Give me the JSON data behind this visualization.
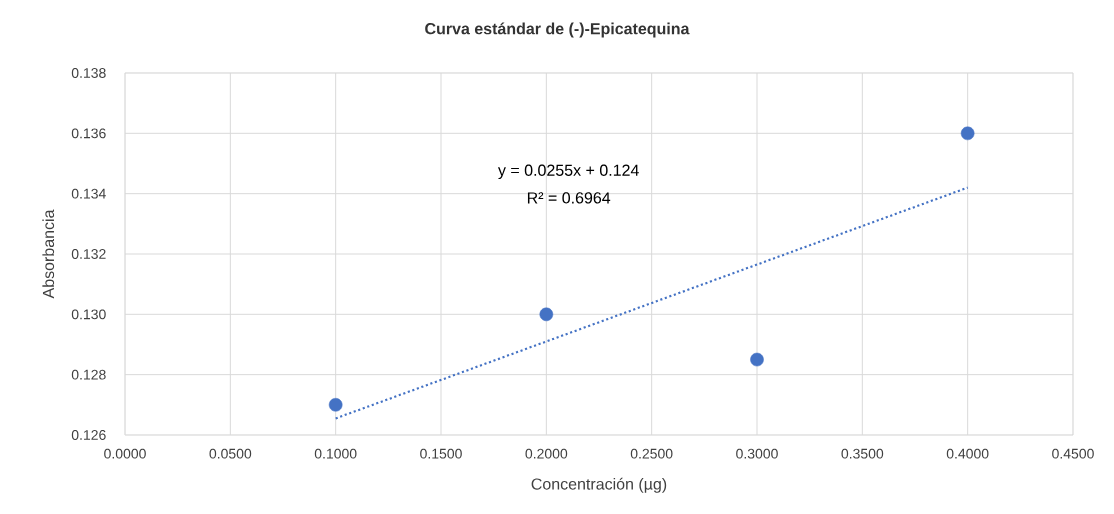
{
  "chart_data": {
    "type": "scatter",
    "title": "Curva estándar de (-)-Epicatequina",
    "xlabel": "Concentración (µg)",
    "ylabel": "Absorbancia",
    "series": [
      {
        "color": "#4472c4",
        "marker": "circle",
        "x": [
          0.1,
          0.2,
          0.3,
          0.4
        ],
        "values": [
          0.127,
          0.13,
          0.1285,
          0.136
        ]
      },
      {
        "type": "line",
        "color": "#4472c4",
        "marker": "none",
        "line_style": "dotted",
        "x": [
          0.1,
          0.4
        ],
        "values": [
          0.12655,
          0.1342
        ]
      }
    ],
    "xlim": [
      0,
      0.45
    ],
    "ylim": [
      0.126,
      0.138
    ],
    "xticks": [
      {
        "value": 0,
        "label": "0.0000"
      },
      {
        "value": 0.05,
        "label": "0.0500"
      },
      {
        "value": 0.1,
        "label": "0.1000"
      },
      {
        "value": 0.15,
        "label": "0.1500"
      },
      {
        "value": 0.2,
        "label": "0.2000"
      },
      {
        "value": 0.25,
        "label": "0.2500"
      },
      {
        "value": 0.3,
        "label": "0.3000"
      },
      {
        "value": 0.35,
        "label": "0.3500"
      },
      {
        "value": 0.4,
        "label": "0.4000"
      },
      {
        "value": 0.45,
        "label": "0.4500"
      }
    ],
    "yticks": [
      {
        "value": 0.126,
        "label": "0.126"
      },
      {
        "value": 0.128,
        "label": "0.128"
      },
      {
        "value": 0.13,
        "label": "0.130"
      },
      {
        "value": 0.132,
        "label": "0.132"
      },
      {
        "value": 0.134,
        "label": "0.134"
      },
      {
        "value": 0.136,
        "label": "0.136"
      },
      {
        "value": 0.138,
        "label": "0.138"
      }
    ],
    "grid": true,
    "annotations": [
      "y = 0.0255x + 0.124",
      "R² = 0.6964"
    ]
  }
}
